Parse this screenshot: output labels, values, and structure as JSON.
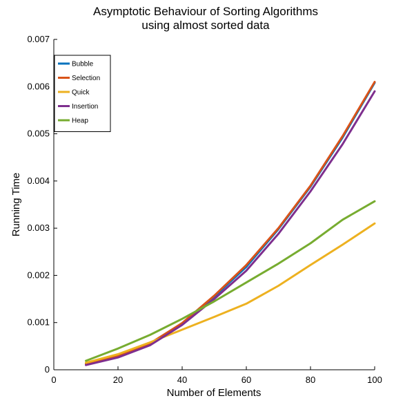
{
  "chart_data": {
    "type": "line",
    "title_lines": [
      "Asymptotic Behaviour of Sorting Algorithms",
      "using almost sorted data"
    ],
    "xlabel": "Number of Elements",
    "ylabel": "Running Time",
    "xlim": [
      0,
      100
    ],
    "ylim": [
      0,
      0.007
    ],
    "xticks": [
      0,
      20,
      40,
      60,
      80,
      100
    ],
    "yticks": [
      0,
      0.001,
      0.002,
      0.003,
      0.004,
      0.005,
      0.006,
      0.007
    ],
    "xtick_labels": [
      "0",
      "20",
      "40",
      "60",
      "80",
      "100"
    ],
    "ytick_labels": [
      "0",
      "0.001",
      "0.002",
      "0.003",
      "0.004",
      "0.005",
      "0.006",
      "0.007"
    ],
    "grid": false,
    "legend_position": "top-left",
    "x": [
      10,
      20,
      30,
      40,
      50,
      60,
      70,
      80,
      90,
      100
    ],
    "series": [
      {
        "name": "Bubble",
        "color": "#0072BD",
        "values": [
          0.00012,
          0.00028,
          0.00055,
          0.00098,
          0.00155,
          0.00218,
          0.00298,
          0.00388,
          0.00492,
          0.00608
        ]
      },
      {
        "name": "Selection",
        "color": "#D95319",
        "values": [
          0.00013,
          0.00029,
          0.00056,
          0.00099,
          0.00157,
          0.00222,
          0.003,
          0.0039,
          0.00495,
          0.0061
        ]
      },
      {
        "name": "Quick",
        "color": "#EDB120",
        "values": [
          0.00015,
          0.00033,
          0.00058,
          0.00085,
          0.00112,
          0.0014,
          0.00178,
          0.00222,
          0.00265,
          0.0031
        ]
      },
      {
        "name": "Insertion",
        "color": "#7E2F8E",
        "values": [
          0.0001,
          0.00026,
          0.00052,
          0.00095,
          0.0015,
          0.0021,
          0.00288,
          0.00378,
          0.00478,
          0.0059
        ]
      },
      {
        "name": "Heap",
        "color": "#77AC30",
        "values": [
          0.00019,
          0.00045,
          0.00074,
          0.00108,
          0.00145,
          0.00185,
          0.00225,
          0.00268,
          0.00318,
          0.00357
        ]
      }
    ]
  }
}
